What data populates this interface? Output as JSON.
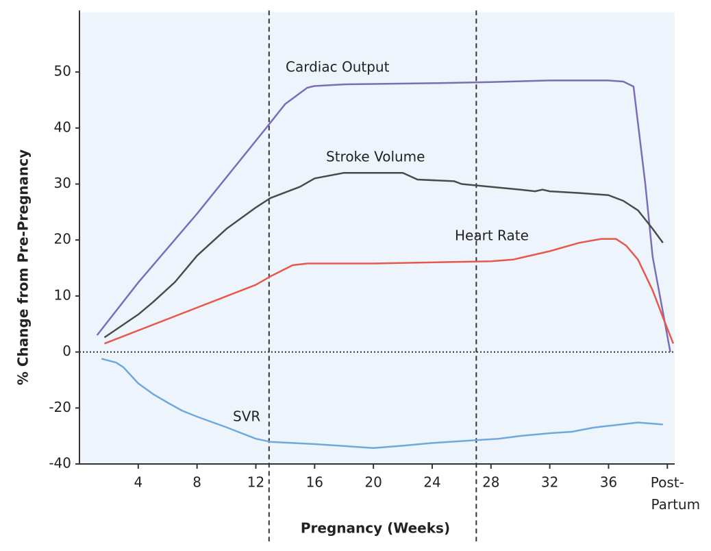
{
  "chart_data": {
    "type": "line",
    "xlabel": "Pregnancy (Weeks)",
    "ylabel": "% Change from Pre-Pregnancy",
    "xlim": [
      0,
      40.5
    ],
    "xticks": [
      4,
      8,
      12,
      16,
      20,
      24,
      28,
      32,
      36,
      {
        "value": 40,
        "label": "Post-\nPartum"
      }
    ],
    "ylim": [
      -40,
      61
    ],
    "yticks": [
      -40,
      -20,
      0,
      10,
      20,
      30,
      40,
      50
    ],
    "zero_line": 0,
    "reference_lines_x": [
      12.9,
      27
    ],
    "series": [
      {
        "name": "Cardiac Output",
        "color": "#7b6cb8",
        "x": [
          1.2,
          4,
          8,
          12.7,
          14,
          15.5,
          16,
          18,
          24,
          28,
          32,
          36,
          37,
          37.7,
          38.5,
          39,
          40.2
        ],
        "values": [
          3,
          12.4,
          24.7,
          40,
          44.3,
          47.2,
          47.5,
          47.8,
          48,
          48.2,
          48.5,
          48.5,
          48.3,
          47.4,
          30,
          17,
          0
        ]
      },
      {
        "name": "Stroke Volume",
        "color": "#4a4a4a",
        "x": [
          1.7,
          4,
          5,
          6.5,
          8,
          10,
          12,
          13,
          15,
          16,
          18,
          22,
          23,
          25.5,
          26,
          30,
          31,
          31.5,
          32,
          34,
          36,
          37,
          38,
          39,
          39.7
        ],
        "values": [
          2.6,
          6.7,
          8.9,
          12.5,
          17.2,
          22,
          25.8,
          27.5,
          29.5,
          31,
          32,
          32,
          30.8,
          30.5,
          30,
          29,
          28.7,
          29,
          28.7,
          28.4,
          28,
          27,
          25.3,
          22,
          19.5
        ]
      },
      {
        "name": "Heart Rate",
        "color": "#e8584a",
        "x": [
          1.7,
          12,
          13,
          14.5,
          15.5,
          20,
          28,
          29.5,
          32,
          34,
          35.5,
          36.5,
          37.2,
          38,
          39,
          39.8,
          40.4
        ],
        "values": [
          1.5,
          12,
          13.5,
          15.5,
          15.8,
          15.8,
          16.2,
          16.5,
          18,
          19.5,
          20.2,
          20.2,
          19,
          16.5,
          11,
          5.5,
          1.5
        ]
      },
      {
        "name": "SVR",
        "color": "#6fa8dc",
        "x": [
          1.5,
          2.5,
          3,
          4,
          5,
          6,
          7,
          8,
          10,
          12,
          13,
          16,
          20,
          22,
          24,
          27,
          28.5,
          30,
          32,
          33.5,
          35,
          36,
          38,
          39.7
        ],
        "values": [
          -2.4,
          -3.8,
          -5.5,
          -11.2,
          -15,
          -18.1,
          -21,
          -23.1,
          -26.9,
          -31,
          -32.1,
          -32.9,
          -34.3,
          -33.5,
          -32.5,
          -31.5,
          -31,
          -30,
          -29,
          -28.5,
          -27,
          -26.4,
          -25.2,
          -25.9
        ]
      }
    ]
  }
}
